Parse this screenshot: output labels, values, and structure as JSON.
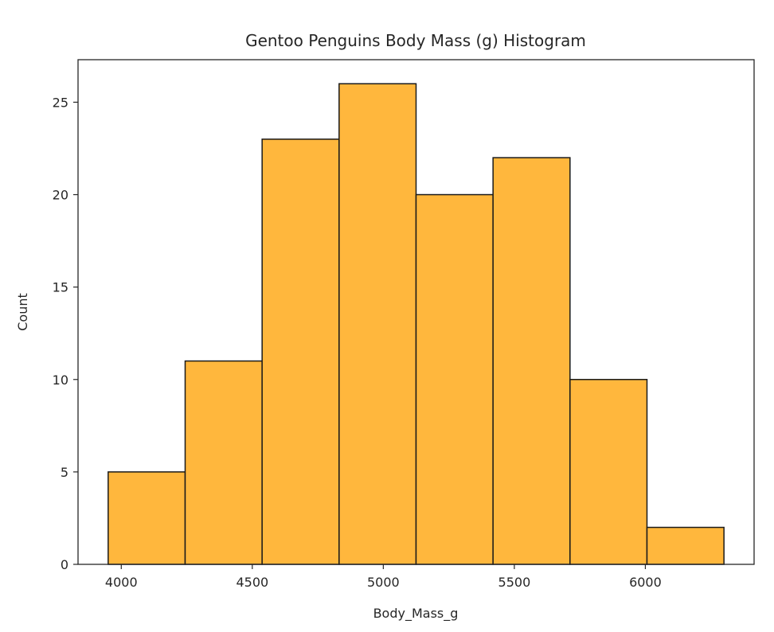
{
  "chart_data": {
    "type": "bar",
    "title": "Gentoo Penguins Body Mass (g) Histogram",
    "xlabel": "Body_Mass_g",
    "ylabel": "Count",
    "bin_edges": [
      3950,
      4243.75,
      4537.5,
      4831.25,
      5125,
      5418.75,
      5712.5,
      6006.25,
      6300
    ],
    "values": [
      5,
      11,
      23,
      26,
      20,
      22,
      10,
      2
    ],
    "xlim": [
      3835,
      6415
    ],
    "ylim": [
      0,
      27.3
    ],
    "x_ticks": [
      4000,
      4500,
      5000,
      5500,
      6000
    ],
    "y_ticks": [
      0,
      5,
      10,
      15,
      20,
      25
    ],
    "bar_color": "#FFB73D",
    "edge_color": "#1a1a1a",
    "grid": false,
    "legend": null
  }
}
